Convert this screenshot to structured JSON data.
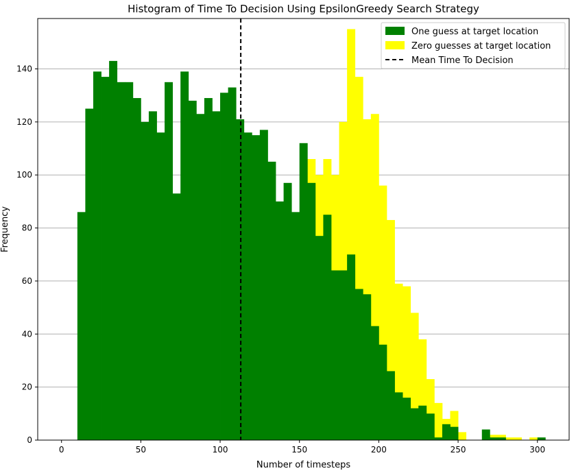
{
  "chart_data": {
    "type": "bar",
    "title": "Histogram of Time To Decision Using EpsilonGreedy Search Strategy",
    "xlabel": "Number of timesteps",
    "ylabel": "Frequency",
    "xlim": [
      -15,
      320
    ],
    "ylim": [
      0,
      159
    ],
    "xticks": [
      0,
      50,
      100,
      150,
      200,
      250,
      300
    ],
    "yticks": [
      0,
      20,
      40,
      60,
      80,
      100,
      120,
      140
    ],
    "grid": "y",
    "legend_position": "top-right",
    "bin_width": 5,
    "series": [
      {
        "name": "One guess at target location",
        "color": "#008000",
        "bins": [
          [
            10,
            86
          ],
          [
            15,
            125
          ],
          [
            20,
            139
          ],
          [
            25,
            137
          ],
          [
            30,
            143
          ],
          [
            35,
            135
          ],
          [
            40,
            135
          ],
          [
            45,
            129
          ],
          [
            50,
            120
          ],
          [
            55,
            124
          ],
          [
            60,
            116
          ],
          [
            65,
            135
          ],
          [
            70,
            93
          ],
          [
            75,
            139
          ],
          [
            80,
            128
          ],
          [
            85,
            123
          ],
          [
            90,
            129
          ],
          [
            95,
            124
          ],
          [
            100,
            131
          ],
          [
            105,
            133
          ],
          [
            110,
            121
          ],
          [
            115,
            116
          ],
          [
            120,
            115
          ],
          [
            125,
            117
          ],
          [
            130,
            105
          ],
          [
            135,
            90
          ],
          [
            140,
            97
          ],
          [
            145,
            86
          ],
          [
            150,
            112
          ],
          [
            155,
            97
          ],
          [
            160,
            77
          ],
          [
            165,
            85
          ],
          [
            170,
            64
          ],
          [
            175,
            64
          ],
          [
            180,
            70
          ],
          [
            185,
            57
          ],
          [
            190,
            55
          ],
          [
            195,
            43
          ],
          [
            200,
            36
          ],
          [
            205,
            26
          ],
          [
            210,
            18
          ],
          [
            215,
            16
          ],
          [
            220,
            12
          ],
          [
            225,
            13
          ],
          [
            230,
            10
          ],
          [
            235,
            1
          ],
          [
            240,
            6
          ],
          [
            245,
            5
          ],
          [
            265,
            4
          ],
          [
            270,
            1
          ],
          [
            275,
            1
          ],
          [
            300,
            1
          ]
        ]
      },
      {
        "name": "Zero guesses at target location",
        "color": "#ffff00",
        "bins": [
          [
            155,
            106
          ],
          [
            160,
            100
          ],
          [
            165,
            106
          ],
          [
            170,
            100
          ],
          [
            175,
            120
          ],
          [
            180,
            155
          ],
          [
            185,
            137
          ],
          [
            190,
            121
          ],
          [
            195,
            123
          ],
          [
            200,
            96
          ],
          [
            205,
            83
          ],
          [
            210,
            59
          ],
          [
            215,
            58
          ],
          [
            220,
            48
          ],
          [
            225,
            38
          ],
          [
            230,
            23
          ],
          [
            235,
            14
          ],
          [
            240,
            8
          ],
          [
            245,
            11
          ],
          [
            250,
            3
          ],
          [
            270,
            2
          ],
          [
            275,
            2
          ],
          [
            280,
            1
          ],
          [
            285,
            1
          ],
          [
            295,
            1
          ]
        ]
      }
    ],
    "vline": {
      "name": "Mean Time To Decision",
      "x": 113,
      "color": "#000000",
      "style": "dashed"
    }
  }
}
